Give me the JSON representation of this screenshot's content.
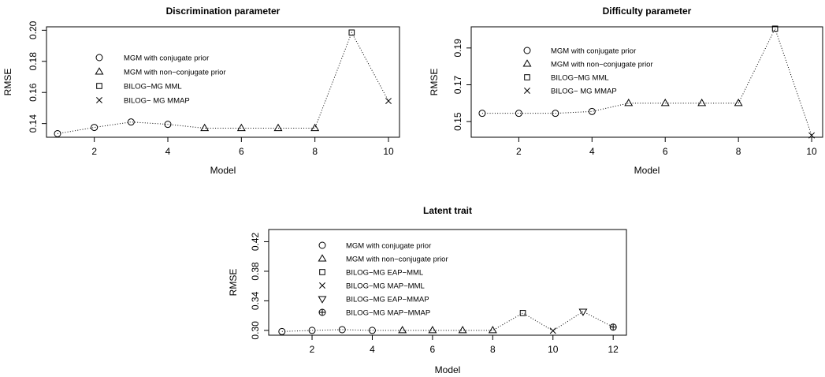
{
  "chart_data": [
    {
      "type": "line",
      "title": "Discrimination parameter",
      "xlabel": "Model",
      "ylabel": "RMSE",
      "xlim": [
        0.7,
        10.3
      ],
      "ylim": [
        0.1312,
        0.2022
      ],
      "x_ticks": [
        2,
        4,
        6,
        8,
        10
      ],
      "y_ticks": [
        0.14,
        0.16,
        0.18,
        0.2
      ],
      "x_tick_labels": [
        "2",
        "4",
        "6",
        "8",
        "10"
      ],
      "y_tick_labels": [
        "0.14",
        "0.16",
        "0.18",
        "0.20"
      ],
      "grid": false,
      "line_style": "dotted",
      "legend": [
        {
          "symbol": "circle",
          "label": "MGM with conjugate prior"
        },
        {
          "symbol": "triangle",
          "label": "MGM with non−conjugate prior"
        },
        {
          "symbol": "square",
          "label": "BILOG−MG MML"
        },
        {
          "symbol": "cross",
          "label": "BILOG− MG MMAP"
        }
      ],
      "series": [
        {
          "symbol": "circle",
          "x": [
            1,
            2,
            3,
            4
          ],
          "y": [
            0.1335,
            0.1375,
            0.141,
            0.1395
          ]
        },
        {
          "symbol": "triangle",
          "x": [
            5,
            6,
            7,
            8
          ],
          "y": [
            0.137,
            0.137,
            0.137,
            0.137
          ]
        },
        {
          "symbol": "square",
          "x": [
            9
          ],
          "y": [
            0.1985
          ]
        },
        {
          "symbol": "cross",
          "x": [
            10
          ],
          "y": [
            0.1545
          ]
        }
      ],
      "connected_sequence": {
        "x": [
          1,
          2,
          3,
          4,
          5,
          6,
          7,
          8,
          9,
          10
        ],
        "y": [
          0.1335,
          0.1375,
          0.141,
          0.1395,
          0.137,
          0.137,
          0.137,
          0.137,
          0.1985,
          0.1545
        ]
      }
    },
    {
      "type": "line",
      "title": "Difficulty parameter",
      "xlabel": "Model",
      "ylabel": "RMSE",
      "xlim": [
        0.7,
        10.3
      ],
      "ylim": [
        0.1415,
        0.2015
      ],
      "x_ticks": [
        2,
        4,
        6,
        8,
        10
      ],
      "y_ticks": [
        0.15,
        0.17,
        0.19
      ],
      "x_tick_labels": [
        "2",
        "4",
        "6",
        "8",
        "10"
      ],
      "y_tick_labels": [
        "0.15",
        "0.17",
        "0.19"
      ],
      "grid": false,
      "line_style": "dotted",
      "legend": [
        {
          "symbol": "circle",
          "label": "MGM with conjugate prior"
        },
        {
          "symbol": "triangle",
          "label": "MGM with non−conjugate prior"
        },
        {
          "symbol": "square",
          "label": "BILOG−MG MML"
        },
        {
          "symbol": "cross",
          "label": "BILOG− MG MMAP"
        }
      ],
      "series": [
        {
          "symbol": "circle",
          "x": [
            1,
            2,
            3,
            4
          ],
          "y": [
            0.1545,
            0.1545,
            0.1545,
            0.1555
          ]
        },
        {
          "symbol": "triangle",
          "x": [
            5,
            6,
            7,
            8
          ],
          "y": [
            0.16,
            0.16,
            0.16,
            0.16
          ]
        },
        {
          "symbol": "square",
          "x": [
            9
          ],
          "y": [
            0.2005
          ]
        },
        {
          "symbol": "cross",
          "x": [
            10
          ],
          "y": [
            0.1425
          ]
        }
      ],
      "connected_sequence": {
        "x": [
          1,
          2,
          3,
          4,
          5,
          6,
          7,
          8,
          9,
          10
        ],
        "y": [
          0.1545,
          0.1545,
          0.1545,
          0.1555,
          0.16,
          0.16,
          0.16,
          0.16,
          0.2005,
          0.1425
        ]
      }
    },
    {
      "type": "line",
      "title": "Latent trait",
      "xlabel": "Model",
      "ylabel": "RMSE",
      "xlim": [
        0.56,
        12.44
      ],
      "ylim": [
        0.2935,
        0.4365
      ],
      "x_ticks": [
        2,
        4,
        6,
        8,
        10,
        12
      ],
      "y_ticks": [
        0.3,
        0.34,
        0.38,
        0.42
      ],
      "x_tick_labels": [
        "2",
        "4",
        "6",
        "8",
        "10",
        "12"
      ],
      "y_tick_labels": [
        "0.30",
        "0.34",
        "0.38",
        "0.42"
      ],
      "grid": false,
      "line_style": "dotted",
      "legend": [
        {
          "symbol": "circle",
          "label": "MGM with conjugate prior"
        },
        {
          "symbol": "triangle",
          "label": "MGM with non−conjugate prior"
        },
        {
          "symbol": "square",
          "label": "BILOG−MG EAP−MML"
        },
        {
          "symbol": "cross",
          "label": "BILOG−MG MAP−MML"
        },
        {
          "symbol": "triangle-down",
          "label": "BILOG−MG EAP−MMAP"
        },
        {
          "symbol": "circle-plus",
          "label": "BILOG−MG MAP−MMAP"
        }
      ],
      "series": [
        {
          "symbol": "circle",
          "x": [
            1,
            2,
            3,
            4
          ],
          "y": [
            0.2985,
            0.3,
            0.301,
            0.3
          ]
        },
        {
          "symbol": "triangle",
          "x": [
            5,
            6,
            7,
            8
          ],
          "y": [
            0.3,
            0.3,
            0.3,
            0.3
          ]
        },
        {
          "symbol": "square",
          "x": [
            9
          ],
          "y": [
            0.3235
          ]
        },
        {
          "symbol": "cross",
          "x": [
            10
          ],
          "y": [
            0.2995
          ]
        },
        {
          "symbol": "triangle-down",
          "x": [
            11
          ],
          "y": [
            0.3255
          ]
        },
        {
          "symbol": "circle-plus",
          "x": [
            12
          ],
          "y": [
            0.3045
          ]
        }
      ],
      "connected_sequence": {
        "x": [
          1,
          2,
          3,
          4,
          5,
          6,
          7,
          8,
          9,
          10,
          11,
          12
        ],
        "y": [
          0.2985,
          0.3,
          0.301,
          0.3,
          0.3,
          0.3,
          0.3,
          0.3,
          0.3235,
          0.2995,
          0.3255,
          0.3045
        ]
      }
    }
  ]
}
